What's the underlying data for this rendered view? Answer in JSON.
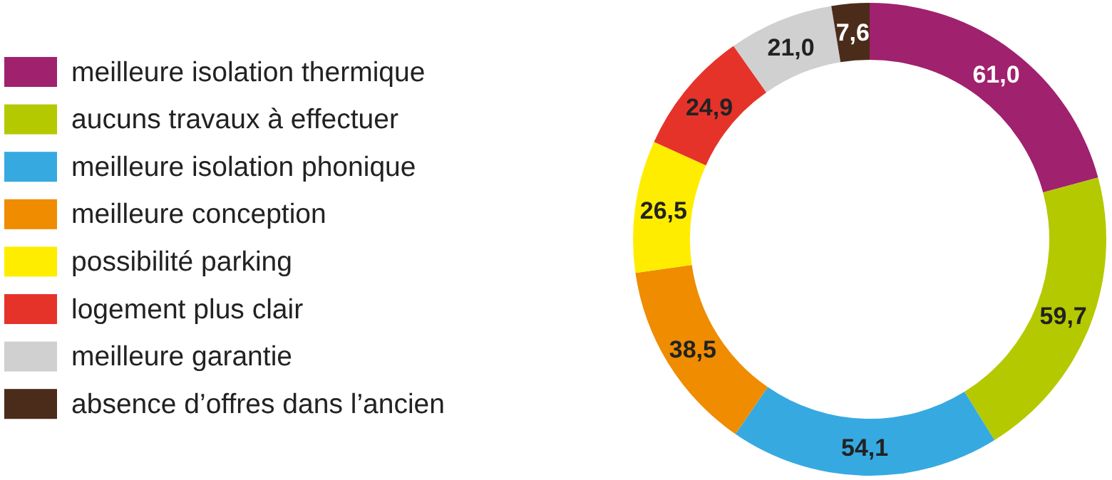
{
  "chart_data": {
    "type": "donut",
    "categories": [
      "meilleure isolation thermique",
      "aucuns travaux à effectuer",
      "meilleure isolation phonique",
      "meilleure conception",
      "possibilité parking",
      "logement plus clair",
      "meilleure garantie",
      "absence d’offres dans l’ancien"
    ],
    "values": [
      61.0,
      59.7,
      54.1,
      38.5,
      26.5,
      24.9,
      21.0,
      7.6
    ],
    "value_labels": [
      "61,0",
      "59,7",
      "54,1",
      "38,5",
      "26,5",
      "24,9",
      "21,0",
      "7,6"
    ],
    "colors": [
      "#a0216e",
      "#b5c900",
      "#36a9e1",
      "#ef8c00",
      "#ffed00",
      "#e6332a",
      "#d0d0d0",
      "#4b2c1a"
    ],
    "legend": "left"
  }
}
